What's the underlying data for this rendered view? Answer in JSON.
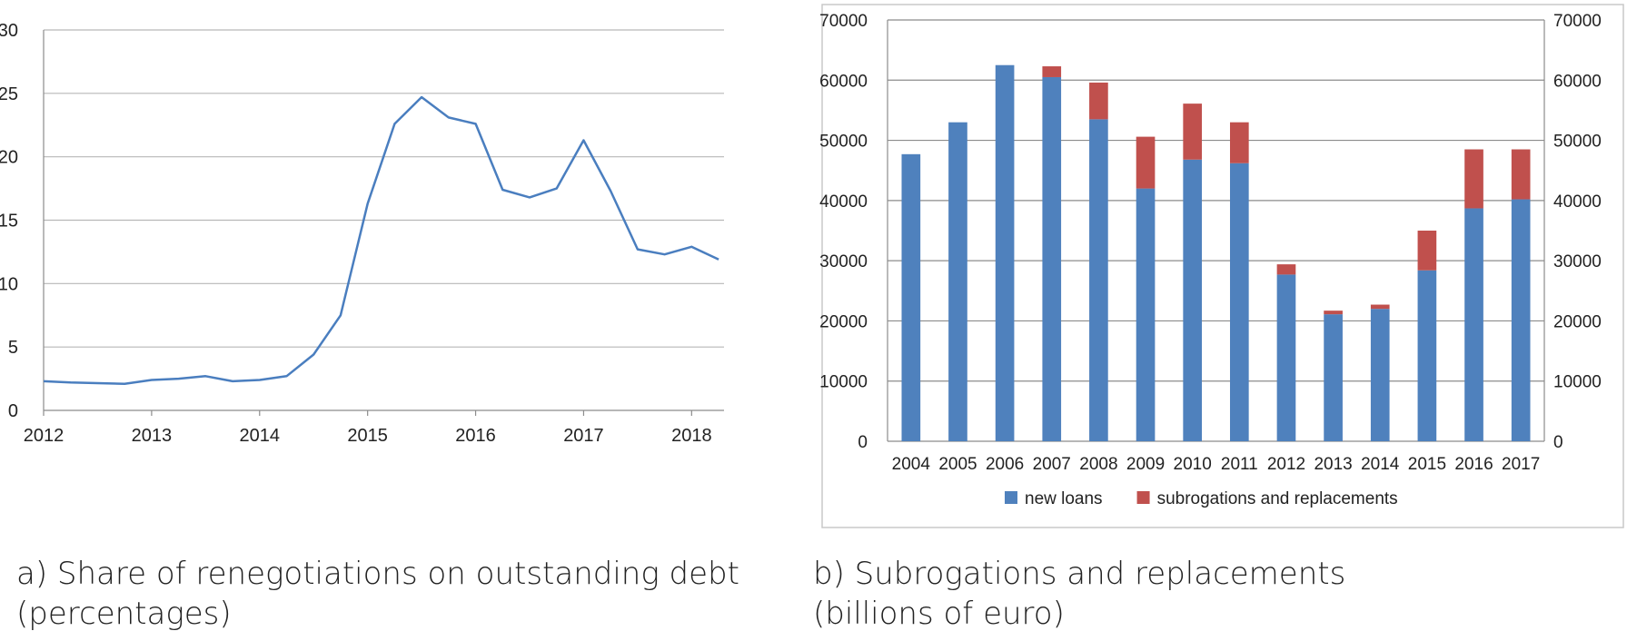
{
  "captions": {
    "a_line1": "a) Share of renegotiations on outstanding debt",
    "a_line2": "(percentages)",
    "b_line1": "b) Subrogations and replacements",
    "b_line2": "(billions of euro)"
  },
  "chart_data": [
    {
      "type": "line",
      "title": "",
      "xlabel": "",
      "ylabel": "",
      "ylim": [
        0,
        30
      ],
      "yticks": [
        0,
        5,
        10,
        15,
        20,
        25,
        30
      ],
      "xlim": [
        2012,
        2018.3
      ],
      "xticks": [
        2012,
        2013,
        2014,
        2015,
        2016,
        2017,
        2018
      ],
      "grid": true,
      "secondary_axis": true,
      "color": "#4a7ebf",
      "series": [
        {
          "x": [
            2012.0,
            2012.25,
            2012.5,
            2012.75,
            2013.0,
            2013.25,
            2013.5,
            2013.75,
            2014.0,
            2014.25,
            2014.5,
            2014.75,
            2015.0,
            2015.25,
            2015.5,
            2015.75,
            2016.0,
            2016.25,
            2016.5,
            2016.75,
            2017.0,
            2017.25,
            2017.5,
            2017.75,
            2018.0,
            2018.25
          ],
          "values": [
            2.3,
            2.2,
            2.15,
            2.1,
            2.4,
            2.5,
            2.7,
            2.3,
            2.4,
            2.7,
            4.4,
            7.5,
            16.3,
            22.6,
            24.7,
            23.1,
            22.6,
            17.4,
            16.8,
            17.5,
            21.3,
            17.3,
            12.7,
            12.3,
            12.9,
            11.9
          ]
        }
      ]
    },
    {
      "type": "bar",
      "stacked": true,
      "title": "",
      "xlabel": "",
      "ylabel": "",
      "ylim": [
        0,
        70000
      ],
      "yticks": [
        0,
        10000,
        20000,
        30000,
        40000,
        50000,
        60000,
        70000
      ],
      "grid": true,
      "secondary_axis": true,
      "legend": "bottom",
      "categories": [
        "2004",
        "2005",
        "2006",
        "2007",
        "2008",
        "2009",
        "2010",
        "2011",
        "2012",
        "2013",
        "2014",
        "2015",
        "2016",
        "2017"
      ],
      "series": [
        {
          "name": "new loans",
          "color": "#4f81bd",
          "values": [
            47700,
            53000,
            62500,
            60500,
            53500,
            42000,
            46800,
            46200,
            27700,
            21100,
            22000,
            28400,
            38700,
            40200
          ]
        },
        {
          "name": "subrogations and replacements",
          "color": "#c0504d",
          "values": [
            0,
            0,
            0,
            1800,
            6100,
            8600,
            9300,
            6800,
            1700,
            600,
            700,
            6600,
            9800,
            8300
          ]
        }
      ]
    }
  ]
}
